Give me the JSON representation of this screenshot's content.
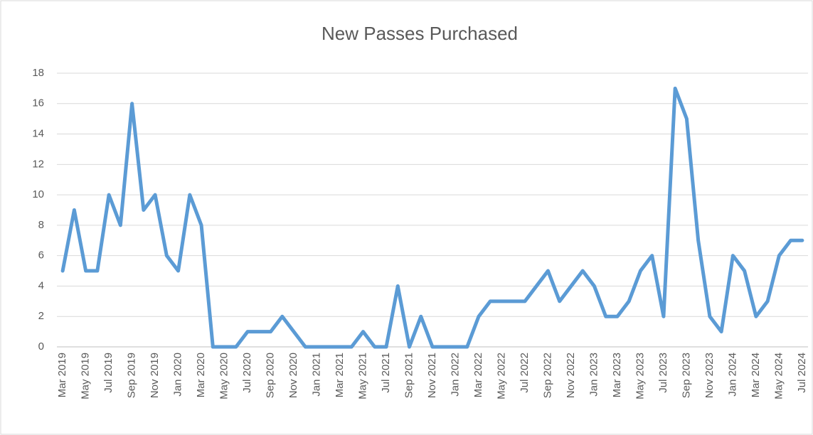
{
  "chart_data": {
    "type": "line",
    "title": "New Passes Purchased",
    "categories": [
      "Mar 2019",
      null,
      "May 2019",
      null,
      "Jul 2019",
      null,
      "Sep 2019",
      null,
      "Nov 2019",
      null,
      "Jan 2020",
      null,
      "Mar 2020",
      null,
      "May 2020",
      null,
      "Jul 2020",
      null,
      "Sep 2020",
      null,
      "Nov 2020",
      null,
      "Jan 2021",
      null,
      "Mar 2021",
      null,
      "May 2021",
      null,
      "Jul 2021",
      null,
      "Sep 2021",
      null,
      "Nov 2021",
      null,
      "Jan 2022",
      null,
      "Mar 2022",
      null,
      "May 2022",
      null,
      "Jul 2022",
      null,
      "Sep 2022",
      null,
      "Nov 2022",
      null,
      "Jan 2023",
      null,
      "Mar 2023",
      null,
      "May 2023",
      null,
      "Jul 2023",
      null,
      "Sep 2023",
      null,
      "Nov 2023",
      null,
      "Jan 2024",
      null,
      "Mar 2024",
      null,
      "May 2024",
      null,
      "Jul 2024"
    ],
    "values": [
      5,
      9,
      5,
      5,
      10,
      8,
      16,
      9,
      10,
      6,
      5,
      10,
      8,
      0,
      0,
      0,
      1,
      1,
      1,
      2,
      1,
      0,
      0,
      0,
      0,
      0,
      1,
      0,
      0,
      4,
      0,
      2,
      0,
      0,
      0,
      0,
      2,
      3,
      3,
      3,
      3,
      4,
      5,
      3,
      4,
      5,
      4,
      2,
      2,
      3,
      5,
      6,
      2,
      17,
      15,
      7,
      2,
      1,
      6,
      5,
      2,
      3,
      6,
      7,
      7
    ],
    "color": "#5b9bd5",
    "ylim": [
      0,
      18
    ],
    "yticks": [
      0,
      2,
      4,
      6,
      8,
      10,
      12,
      14,
      16,
      18
    ],
    "grid": true
  }
}
